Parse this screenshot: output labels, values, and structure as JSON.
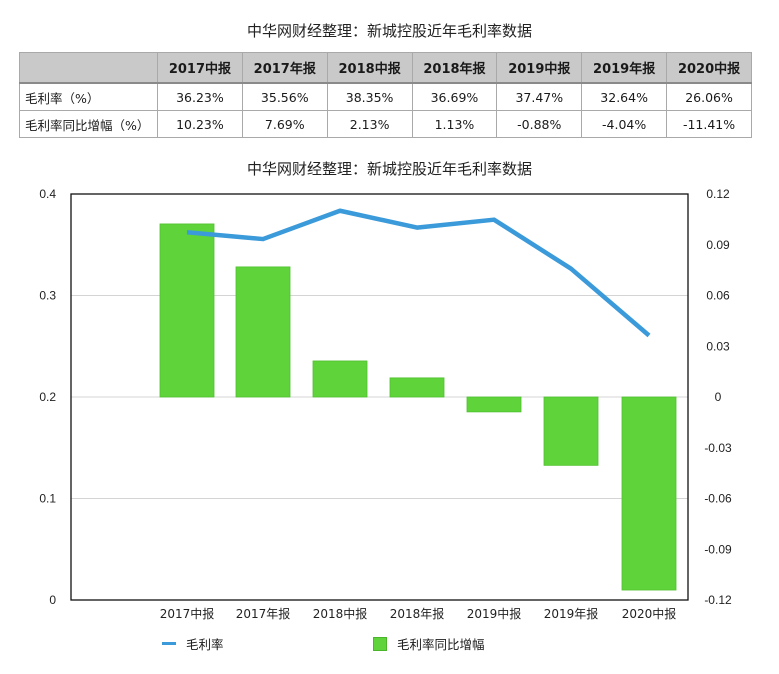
{
  "table": {
    "title": "中华网财经整理：新城控股近年毛利率数据",
    "columns": [
      "",
      "2017中报",
      "2017年报",
      "2018中报",
      "2018年报",
      "2019中报",
      "2019年报",
      "2020中报"
    ],
    "rows": [
      {
        "label": "毛利率（%）",
        "values": [
          "36.23%",
          "35.56%",
          "38.35%",
          "36.69%",
          "37.47%",
          "32.64%",
          "26.06%"
        ]
      },
      {
        "label": "毛利率同比增幅（%）",
        "values": [
          "10.23%",
          "7.69%",
          "2.13%",
          "1.13%",
          "-0.88%",
          "-4.04%",
          "-11.41%"
        ]
      }
    ]
  },
  "chart_data": {
    "type": "bar+line",
    "title": "中华网财经整理：新城控股近年毛利率数据",
    "categories": [
      "2017中报",
      "2017年报",
      "2018中报",
      "2018年报",
      "2019中报",
      "2019年报",
      "2020中报"
    ],
    "series": [
      {
        "name": "毛利率",
        "type": "line",
        "axis": "left",
        "color": "#3b9ad9",
        "values": [
          0.3623,
          0.3556,
          0.3835,
          0.3669,
          0.3747,
          0.3264,
          0.2606
        ]
      },
      {
        "name": "毛利率同比增幅",
        "type": "bar",
        "axis": "right",
        "color": "#5fd43a",
        "values": [
          0.1023,
          0.0769,
          0.0213,
          0.0113,
          -0.0088,
          -0.0404,
          -0.1141
        ]
      }
    ],
    "left_axis": {
      "ticks": [
        "0",
        "0.1",
        "0.2",
        "0.3",
        "0.4"
      ],
      "ylim": [
        0,
        0.4
      ]
    },
    "right_axis": {
      "ticks": [
        "0.12",
        "0.09",
        "0.06",
        "0.03",
        "0",
        "-0.03",
        "-0.06",
        "-0.09",
        "-0.12"
      ],
      "ylim": [
        -0.12,
        0.12
      ]
    },
    "grid": true,
    "legend_position": "bottom",
    "xlabel": "",
    "ylabel": ""
  },
  "legend": {
    "line_label": "毛利率",
    "bar_label": "毛利率同比增幅"
  }
}
